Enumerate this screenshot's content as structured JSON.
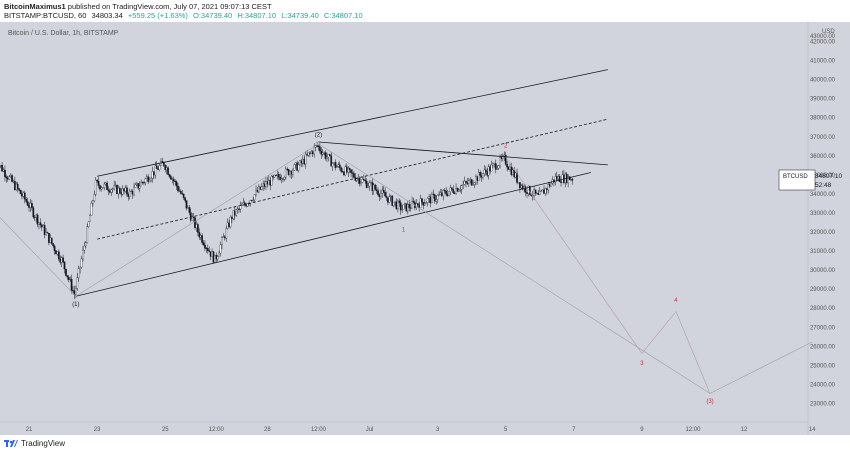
{
  "header": {
    "author": "BitcoinMaximus1",
    "published": "published on TradingView.com, July 07, 2021 09:07:13 CEST",
    "symbol": "BITSTAMP:BTCUSD, 60",
    "last": "34803.34",
    "change": "+559.25 (+1.63%)",
    "open": "O:34739.40",
    "high": "H:34807.10",
    "low": "L:34739.40",
    "close": "C:34807.10"
  },
  "chart_title": "Bitcoin / U.S. Dollar, 1h, BITSTAMP",
  "currency": "USD",
  "price_tag": {
    "symbol": "BTCUSD",
    "price": "34807.10",
    "countdown": "52:48"
  },
  "footer": {
    "brand": "TradingView"
  },
  "colors": {
    "background": "#d1d4dc",
    "up": "#ffffff",
    "down": "#131722",
    "wave_red": "#d32f2f",
    "projection": "#b89aa0"
  },
  "chart_data": {
    "type": "candlestick",
    "title": "Bitcoin / U.S. Dollar, 1h, BITSTAMP",
    "ylim": [
      22000,
      43000
    ],
    "y_ticks": [
      23000,
      24000,
      25000,
      26000,
      27000,
      28000,
      29000,
      30000,
      31000,
      32000,
      33000,
      34000,
      35000,
      36000,
      37000,
      38000,
      39000,
      40000,
      41000,
      42000
    ],
    "y_tick_labels": [
      "23000.00",
      "24000.00",
      "25000.00",
      "26000.00",
      "27000.00",
      "28000.00",
      "29000.00",
      "30000.00",
      "31000.00",
      "32000.00",
      "33000.00",
      "34000.00",
      "35000.00",
      "36000.00",
      "37000.00",
      "38000.00",
      "39000.00",
      "40000.00",
      "41000.00",
      "42000.00"
    ],
    "y_top_label": "43000.00",
    "x_range": [
      "Jun 20",
      "Jul 11"
    ],
    "x_ticks": [
      {
        "label": "21",
        "date": "Jun 21"
      },
      {
        "label": "23",
        "date": "Jun 23"
      },
      {
        "label": "25",
        "date": "Jun 25"
      },
      {
        "label": "12:00",
        "date": "Jun 26 12:00"
      },
      {
        "label": "28",
        "date": "Jun 28"
      },
      {
        "label": "12:00",
        "date": "Jun 29 12:00"
      },
      {
        "label": "Jul",
        "date": "Jul 1"
      },
      {
        "label": "3",
        "date": "Jul 3"
      },
      {
        "label": "5",
        "date": "Jul 5"
      },
      {
        "label": "7",
        "date": "Jul 7"
      },
      {
        "label": "9",
        "date": "Jul 9"
      },
      {
        "label": "12:00",
        "date": "Jul 10 12:00"
      },
      {
        "label": "12",
        "date": "Jul 12"
      },
      {
        "label": "14",
        "date": "Jul 14"
      }
    ],
    "price_path": [
      [
        "Jun 20",
        35900
      ],
      [
        "Jun 21",
        33500
      ],
      [
        "Jun 22",
        30500
      ],
      [
        "Jun 22 09:00",
        28700
      ],
      [
        "Jun 22 18:00",
        32000
      ],
      [
        "Jun 23",
        34500
      ],
      [
        "Jun 24",
        34000
      ],
      [
        "Jun 25",
        35600
      ],
      [
        "Jun 25 12:00",
        34000
      ],
      [
        "Jun 26",
        32000
      ],
      [
        "Jun 26 12:00",
        30500
      ],
      [
        "Jun 27",
        32800
      ],
      [
        "Jun 28",
        34500
      ],
      [
        "Jun 29",
        35500
      ],
      [
        "Jun 29 12:00",
        36500
      ],
      [
        "Jun 30",
        35500
      ],
      [
        "Jul 1",
        34500
      ],
      [
        "Jul 2",
        33200
      ],
      [
        "Jul 3",
        33800
      ],
      [
        "Jul 4",
        34600
      ],
      [
        "Jul 5",
        35800
      ],
      [
        "Jul 5 12:00",
        34400
      ],
      [
        "Jul 6",
        33800
      ],
      [
        "Jul 6 12:00",
        34800
      ],
      [
        "Jul 7",
        34807
      ]
    ],
    "wave_labels": [
      {
        "text": "(1)",
        "date": "Jun 22 09:00",
        "price": 28100,
        "color": "#131722"
      },
      {
        "text": "(2)",
        "date": "Jun 29 12:00",
        "price": 37000,
        "color": "#131722"
      },
      {
        "text": "1",
        "date": "Jul 2",
        "price": 32000,
        "color": "#d32f2f"
      },
      {
        "text": "2",
        "date": "Jul 5",
        "price": 36400,
        "color": "#d32f2f"
      },
      {
        "text": "3",
        "date": "Jul 9",
        "price": 25000,
        "color": "#d32f2f"
      },
      {
        "text": "4",
        "date": "Jul 10",
        "price": 28300,
        "color": "#d32f2f"
      },
      {
        "text": "(3)",
        "date": "Jul 11",
        "price": 23000,
        "color": "#d32f2f"
      }
    ]
  }
}
